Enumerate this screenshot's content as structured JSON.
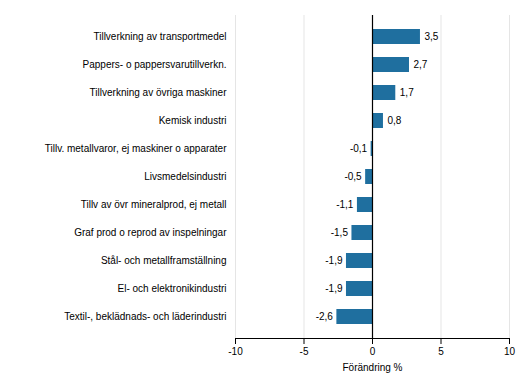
{
  "chart_data": {
    "type": "bar",
    "orientation": "horizontal",
    "categories": [
      "Tillverkning av transportmedel",
      "Pappers- o pappersvarutillverkn.",
      "Tillverkning av övriga maskiner",
      "Kemisk industri",
      "Tillv. metallvaror, ej maskiner o apparater",
      "Livsmedelsindustri",
      "Tillv av övr mineralprod, ej metall",
      "Graf prod o reprod av inspelningar",
      "Stål- och metallframställning",
      "El- och elektronikindustri",
      "Textil-, beklädnads- och läderindustri"
    ],
    "values": [
      3.5,
      2.7,
      1.7,
      0.8,
      -0.1,
      -0.5,
      -1.1,
      -1.5,
      -1.9,
      -1.9,
      -2.6
    ],
    "value_labels": [
      "3,5",
      "2,7",
      "1,7",
      "0,8",
      "-0,1",
      "-0,5",
      "-1,1",
      "-1,5",
      "-1,9",
      "-1,9",
      "-2,6"
    ],
    "color": "#1f6f9f",
    "xlabel": "Förändring %",
    "xlim": [
      -10,
      10
    ],
    "xticks": [
      -10,
      -5,
      0,
      5,
      10
    ],
    "grid": true,
    "data_labels": true
  }
}
